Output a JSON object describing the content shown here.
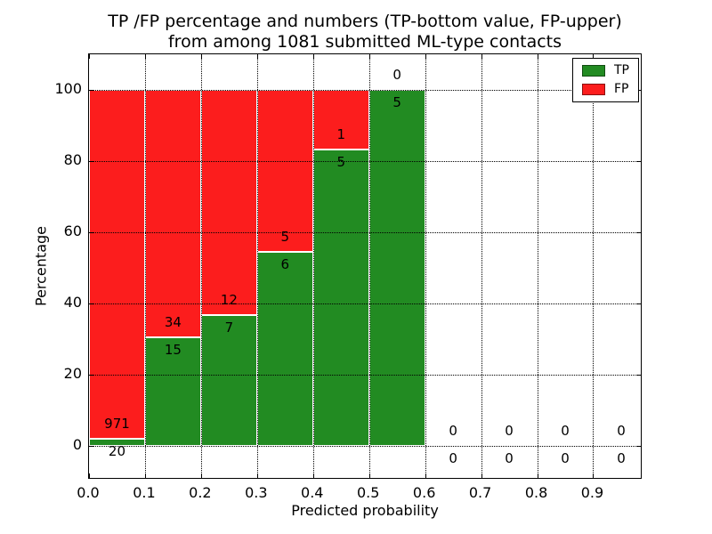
{
  "figure": {
    "title_line1": "TP /FP percentage and numbers (TP-bottom value, FP-upper)",
    "title_line2": "from among 1081 submitted ML-type contacts"
  },
  "chart_data": {
    "type": "bar",
    "subtype": "stacked-percentage-histogram",
    "title": "TP /FP percentage and numbers (TP-bottom value, FP-upper) from among 1081 submitted ML-type contacts",
    "xlabel": "Predicted probability",
    "ylabel": "Percentage",
    "xticks": [
      "0.0",
      "0.1",
      "0.2",
      "0.3",
      "0.4",
      "0.5",
      "0.6",
      "0.7",
      "0.8",
      "0.9"
    ],
    "xtick_values": [
      0.0,
      0.1,
      0.2,
      0.3,
      0.4,
      0.5,
      0.6,
      0.7,
      0.8,
      0.9
    ],
    "yticks": [
      "0",
      "20",
      "40",
      "60",
      "80",
      "100"
    ],
    "ytick_values": [
      0,
      20,
      40,
      60,
      80,
      100
    ],
    "xlim": [
      0,
      0.985
    ],
    "ylim": [
      -9,
      110
    ],
    "grid": {
      "style": "dotted",
      "color": "#000000",
      "axes": "both"
    },
    "total_contacts": 1081,
    "colors": {
      "tp": "#228b22",
      "fp": "#fc1d1d",
      "bar_edge": "#ffffff"
    },
    "legend": {
      "position": "upper-right",
      "entries": [
        {
          "label": "TP",
          "color": "#228b22"
        },
        {
          "label": "FP",
          "color": "#fc1d1d"
        }
      ]
    },
    "bins": [
      {
        "x_start": 0.0,
        "x_end": 0.1,
        "tp": 20,
        "fp": 971,
        "tp_percent": 2.02
      },
      {
        "x_start": 0.1,
        "x_end": 0.2,
        "tp": 15,
        "fp": 34,
        "tp_percent": 30.61
      },
      {
        "x_start": 0.2,
        "x_end": 0.3,
        "tp": 7,
        "fp": 12,
        "tp_percent": 36.84
      },
      {
        "x_start": 0.3,
        "x_end": 0.4,
        "tp": 6,
        "fp": 5,
        "tp_percent": 54.55
      },
      {
        "x_start": 0.4,
        "x_end": 0.5,
        "tp": 5,
        "fp": 1,
        "tp_percent": 83.33
      },
      {
        "x_start": 0.5,
        "x_end": 0.6,
        "tp": 5,
        "fp": 0,
        "tp_percent": 100.0
      },
      {
        "x_start": 0.6,
        "x_end": 0.7,
        "tp": 0,
        "fp": 0,
        "tp_percent": 0
      },
      {
        "x_start": 0.7,
        "x_end": 0.8,
        "tp": 0,
        "fp": 0,
        "tp_percent": 0
      },
      {
        "x_start": 0.8,
        "x_end": 0.9,
        "tp": 0,
        "fp": 0,
        "tp_percent": 0
      },
      {
        "x_start": 0.9,
        "x_end": 1.0,
        "tp": 0,
        "fp": 0,
        "tp_percent": 0
      }
    ]
  }
}
